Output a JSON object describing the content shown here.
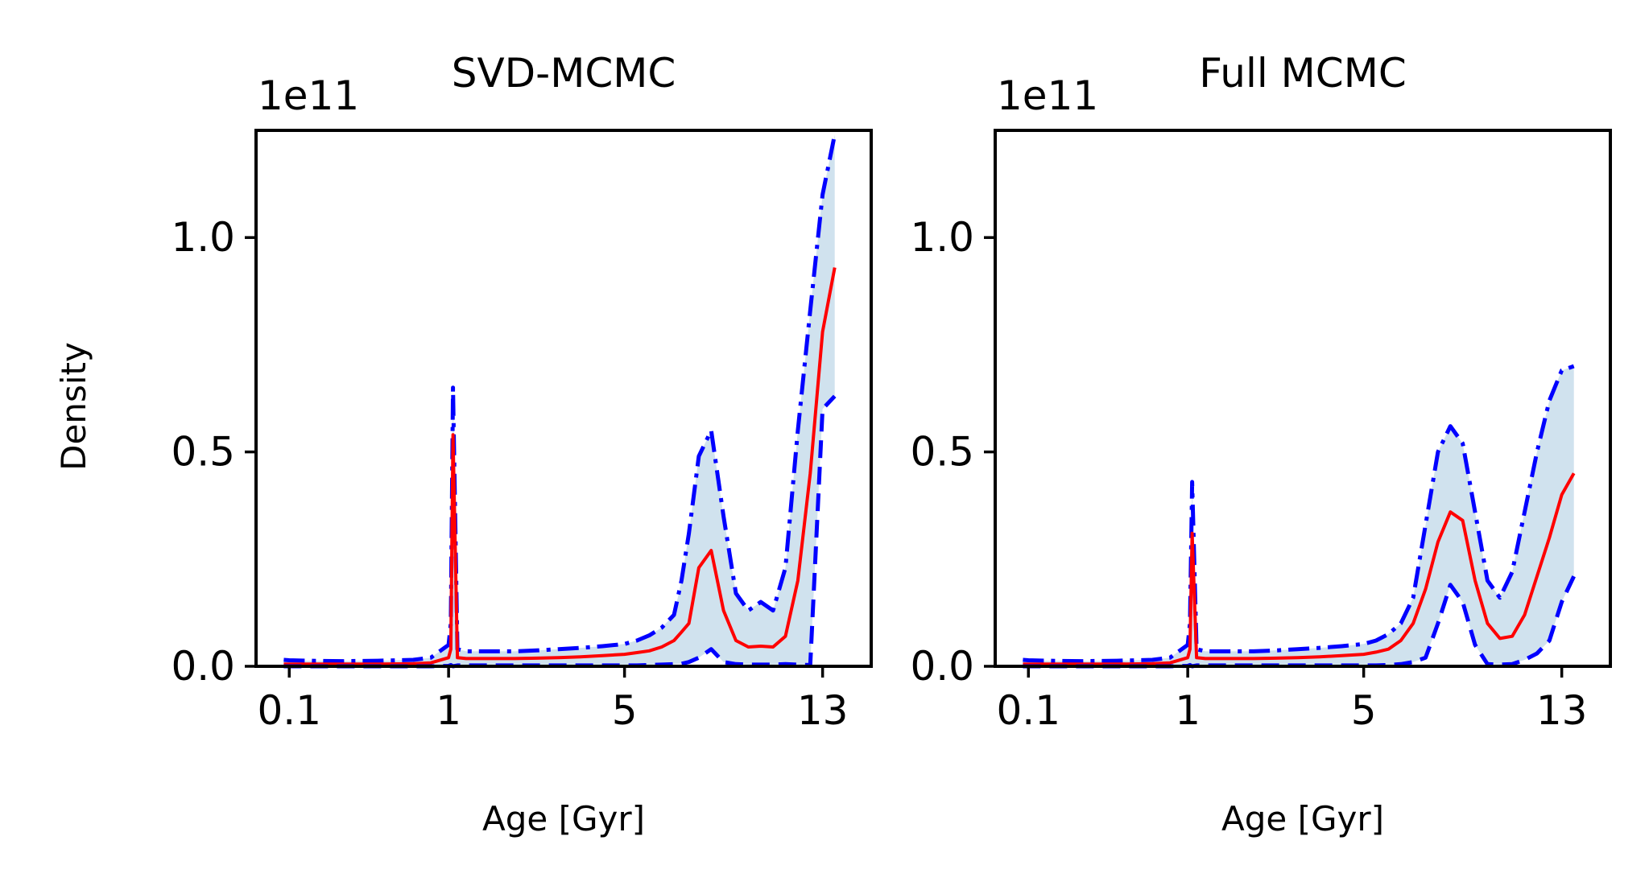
{
  "chart_data": [
    {
      "type": "line",
      "title": "SVD-MCMC",
      "xlabel": "Age [Gyr]",
      "ylabel": "Density",
      "y_multiplier": "1e11",
      "xscale": "custom-nonlinear",
      "xticks": [
        0.1,
        1,
        5,
        13
      ],
      "xtick_labels": [
        "0.1",
        "1",
        "5",
        "13"
      ],
      "yticks": [
        0.0,
        0.5,
        1.0
      ],
      "ytick_labels": [
        "0.0",
        "0.5",
        "1.0"
      ],
      "ylim": [
        0,
        1.25
      ],
      "xlim": [
        -0.5,
        14.2
      ],
      "grid": false,
      "colors": {
        "median": "#ff0000",
        "bounds": "#0000ff",
        "band": "#d0e2ee"
      },
      "x": [
        0.0,
        0.1,
        0.2,
        0.4,
        0.6,
        0.8,
        0.9,
        1.0,
        1.05,
        1.1,
        1.2,
        1.4,
        1.7,
        2.0,
        2.5,
        3.0,
        3.5,
        4.0,
        4.5,
        5.0,
        5.5,
        6.0,
        6.5,
        7.0,
        7.3,
        7.6,
        8.0,
        8.5,
        9.0,
        9.5,
        10.0,
        10.5,
        11.0,
        11.5,
        12.0,
        12.5,
        13.0,
        13.3
      ],
      "series": [
        {
          "role": "upper",
          "style": "dashdot",
          "values": [
            0.015,
            0.014,
            0.013,
            0.012,
            0.013,
            0.015,
            0.02,
            0.05,
            0.1,
            0.65,
            0.04,
            0.035,
            0.035,
            0.035,
            0.035,
            0.037,
            0.04,
            0.043,
            0.047,
            0.052,
            0.06,
            0.072,
            0.09,
            0.12,
            0.2,
            0.31,
            0.49,
            0.55,
            0.35,
            0.17,
            0.13,
            0.15,
            0.13,
            0.23,
            0.55,
            0.83,
            1.1,
            1.24
          ]
        },
        {
          "role": "median",
          "style": "solid",
          "values": [
            0.005,
            0.005,
            0.005,
            0.005,
            0.005,
            0.006,
            0.008,
            0.02,
            0.04,
            0.54,
            0.02,
            0.018,
            0.018,
            0.018,
            0.018,
            0.019,
            0.02,
            0.022,
            0.025,
            0.028,
            0.032,
            0.036,
            0.045,
            0.06,
            0.08,
            0.1,
            0.23,
            0.27,
            0.13,
            0.06,
            0.045,
            0.047,
            0.045,
            0.07,
            0.2,
            0.45,
            0.78,
            0.93
          ]
        },
        {
          "role": "lower",
          "style": "dashed",
          "values": [
            0.0,
            0.0,
            0.0,
            0.0,
            0.0,
            0.0,
            0.0,
            0.001,
            0.003,
            0.0,
            0.002,
            0.002,
            0.002,
            0.002,
            0.002,
            0.002,
            0.002,
            0.002,
            0.002,
            0.002,
            0.002,
            0.003,
            0.004,
            0.005,
            0.006,
            0.01,
            0.02,
            0.04,
            0.01,
            0.005,
            0.004,
            0.004,
            0.004,
            0.005,
            0.004,
            0.003,
            0.6,
            0.63
          ]
        }
      ]
    },
    {
      "type": "line",
      "title": "Full MCMC",
      "xlabel": "Age [Gyr]",
      "ylabel": "",
      "y_multiplier": "1e11",
      "xscale": "custom-nonlinear",
      "xticks": [
        0.1,
        1,
        5,
        13
      ],
      "xtick_labels": [
        "0.1",
        "1",
        "5",
        "13"
      ],
      "yticks": [
        0.0,
        0.5,
        1.0
      ],
      "ytick_labels": [
        "0.0",
        "0.5",
        "1.0"
      ],
      "ylim": [
        0,
        1.25
      ],
      "xlim": [
        -0.5,
        14.2
      ],
      "grid": false,
      "colors": {
        "median": "#ff0000",
        "bounds": "#0000ff",
        "band": "#d0e2ee"
      },
      "x": [
        0.0,
        0.1,
        0.2,
        0.4,
        0.6,
        0.8,
        0.9,
        1.0,
        1.05,
        1.1,
        1.2,
        1.4,
        1.7,
        2.0,
        2.5,
        3.0,
        3.5,
        4.0,
        4.5,
        5.0,
        5.5,
        6.0,
        6.5,
        7.0,
        7.5,
        8.0,
        8.5,
        9.0,
        9.5,
        10.0,
        10.5,
        11.0,
        11.5,
        12.0,
        12.5,
        13.0,
        13.3
      ],
      "series": [
        {
          "role": "upper",
          "style": "dashdot",
          "values": [
            0.015,
            0.014,
            0.013,
            0.012,
            0.013,
            0.015,
            0.02,
            0.05,
            0.1,
            0.43,
            0.04,
            0.035,
            0.035,
            0.035,
            0.035,
            0.037,
            0.04,
            0.043,
            0.047,
            0.052,
            0.06,
            0.075,
            0.1,
            0.16,
            0.33,
            0.5,
            0.56,
            0.52,
            0.36,
            0.2,
            0.16,
            0.22,
            0.36,
            0.5,
            0.62,
            0.69,
            0.7
          ]
        },
        {
          "role": "median",
          "style": "solid",
          "values": [
            0.005,
            0.005,
            0.005,
            0.005,
            0.005,
            0.006,
            0.008,
            0.02,
            0.04,
            0.31,
            0.02,
            0.018,
            0.018,
            0.018,
            0.018,
            0.019,
            0.02,
            0.022,
            0.025,
            0.028,
            0.033,
            0.04,
            0.06,
            0.1,
            0.18,
            0.29,
            0.36,
            0.34,
            0.2,
            0.1,
            0.065,
            0.07,
            0.12,
            0.21,
            0.3,
            0.4,
            0.45
          ]
        },
        {
          "role": "lower",
          "style": "dashed",
          "values": [
            0.0,
            0.0,
            0.0,
            0.0,
            0.0,
            0.0,
            0.0,
            0.001,
            0.003,
            0.0,
            0.002,
            0.002,
            0.002,
            0.002,
            0.002,
            0.002,
            0.002,
            0.002,
            0.002,
            0.002,
            0.002,
            0.003,
            0.005,
            0.01,
            0.02,
            0.1,
            0.19,
            0.15,
            0.05,
            0.005,
            0.004,
            0.005,
            0.015,
            0.03,
            0.06,
            0.15,
            0.21
          ]
        }
      ]
    }
  ]
}
